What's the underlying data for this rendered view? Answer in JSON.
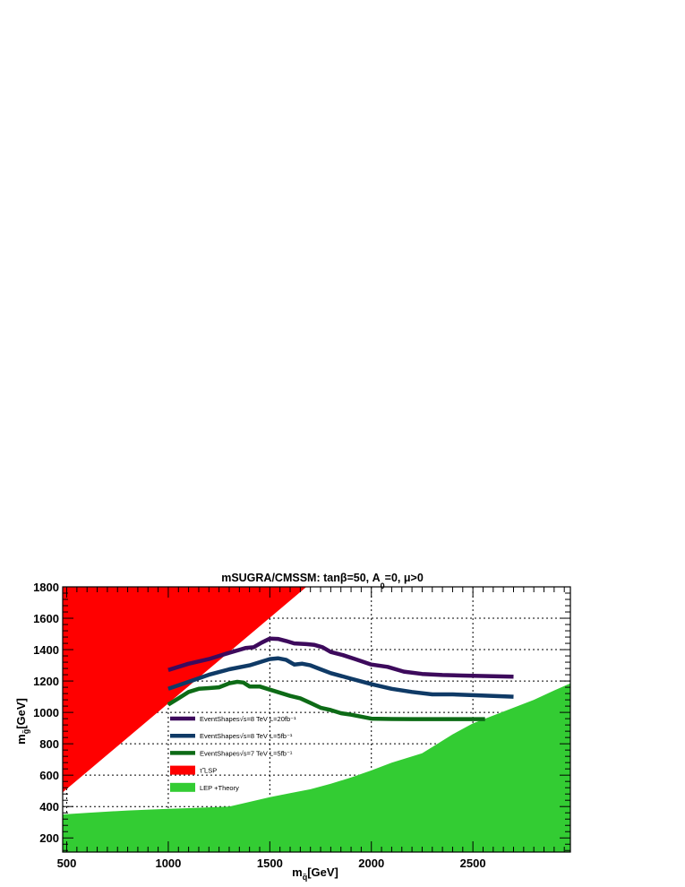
{
  "chart_data": {
    "type": "line",
    "title": "mSUGRA/CMSSM: tanβ=50, A",
    "title_subscript": "0",
    "title_suffix": "=0, μ>0",
    "xlabel": "m",
    "xlabel_sub": "q̃",
    "xlabel_unit": "[GeV]",
    "ylabel": "m",
    "ylabel_sub": "g̃",
    "ylabel_unit": "[GeV]",
    "xlim": [
      480,
      2980
    ],
    "ylim": [
      110,
      1800
    ],
    "xticks": [
      500,
      1000,
      1500,
      2000,
      2500
    ],
    "yticks": [
      200,
      400,
      600,
      800,
      1000,
      1200,
      1400,
      1600,
      1800
    ],
    "grid": true,
    "legend_position": "center-left",
    "series": [
      {
        "name": "EventShapes√s=8 TeV L=20fb⁻¹",
        "color": "#3d0a5c",
        "x": [
          1000,
          1100,
          1200,
          1300,
          1380,
          1420,
          1460,
          1500,
          1540,
          1580,
          1620,
          1680,
          1720,
          1760,
          1800,
          1860,
          1920,
          2000,
          2080,
          2160,
          2250,
          2350,
          2450,
          2550,
          2700
        ],
        "y": [
          1270,
          1310,
          1340,
          1380,
          1410,
          1415,
          1445,
          1470,
          1468,
          1455,
          1440,
          1435,
          1430,
          1415,
          1385,
          1365,
          1340,
          1305,
          1290,
          1260,
          1245,
          1238,
          1235,
          1232,
          1228
        ]
      },
      {
        "name": "EventShapes√s=8 TeV L=5fb⁻¹",
        "color": "#0f3a66",
        "x": [
          1000,
          1100,
          1200,
          1300,
          1400,
          1450,
          1500,
          1540,
          1580,
          1620,
          1660,
          1700,
          1750,
          1800,
          1900,
          2000,
          2100,
          2200,
          2300,
          2400,
          2500,
          2600,
          2700
        ],
        "y": [
          1150,
          1195,
          1240,
          1275,
          1300,
          1320,
          1340,
          1345,
          1335,
          1305,
          1310,
          1300,
          1275,
          1250,
          1215,
          1180,
          1150,
          1130,
          1115,
          1115,
          1110,
          1105,
          1100
        ]
      },
      {
        "name": "EventShapes√s=7 TeV L=5fb⁻¹",
        "color": "#0d6b16",
        "x": [
          1000,
          1050,
          1100,
          1150,
          1200,
          1250,
          1300,
          1340,
          1370,
          1400,
          1450,
          1500,
          1550,
          1600,
          1650,
          1700,
          1750,
          1800,
          1850,
          1900,
          2000,
          2100,
          2200,
          2300,
          2400,
          2500,
          2560
        ],
        "y": [
          1050,
          1090,
          1130,
          1150,
          1155,
          1160,
          1185,
          1195,
          1190,
          1165,
          1165,
          1145,
          1125,
          1105,
          1090,
          1060,
          1030,
          1015,
          995,
          985,
          960,
          958,
          957,
          957,
          957,
          957,
          957
        ]
      }
    ],
    "regions": [
      {
        "name": "τ̃ LSP",
        "color": "#ff0000",
        "x": [
          480,
          1680,
          480
        ],
        "y": [
          490,
          1800,
          1800
        ]
      },
      {
        "name": "LEP +Theory",
        "color": "#33cc33",
        "x": [
          480,
          600,
          800,
          1000,
          1100,
          1200,
          1300,
          1400,
          1500,
          1600,
          1700,
          1800,
          1900,
          2000,
          2100,
          2200,
          2250,
          2300,
          2400,
          2500,
          2600,
          2700,
          2800,
          2900,
          2980,
          2980,
          480
        ],
        "y": [
          350,
          360,
          375,
          385,
          390,
          395,
          400,
          430,
          460,
          485,
          510,
          545,
          585,
          630,
          680,
          720,
          740,
          780,
          860,
          930,
          980,
          1030,
          1080,
          1140,
          1185,
          110,
          110
        ]
      }
    ]
  }
}
